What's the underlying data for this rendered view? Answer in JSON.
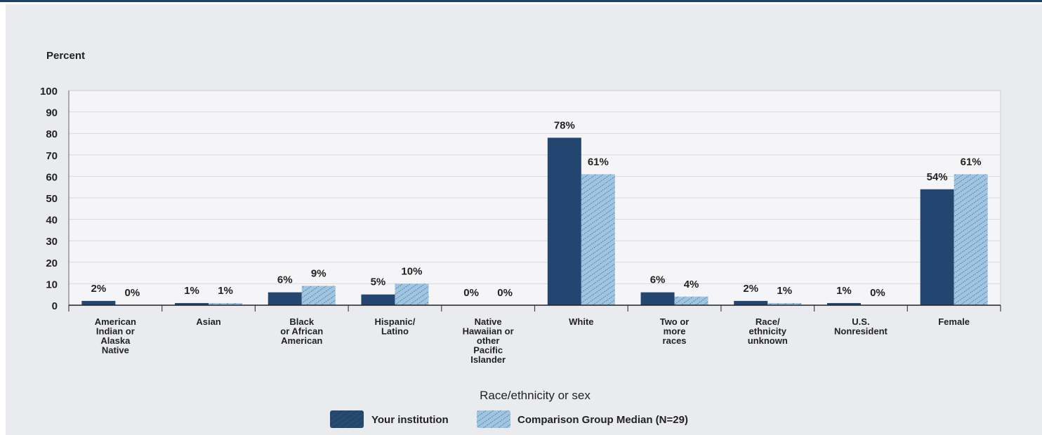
{
  "chart_data": {
    "type": "bar",
    "ylabel": "Percent",
    "xlabel": "Race/ethnicity or sex",
    "ylim": [
      0,
      100
    ],
    "yticks": [
      0,
      10,
      20,
      30,
      40,
      50,
      60,
      70,
      80,
      90,
      100
    ],
    "grid": true,
    "legend_position": "bottom-center",
    "categories": [
      [
        "American",
        "Indian or",
        "Alaska",
        "Native"
      ],
      [
        "Asian"
      ],
      [
        "Black",
        "or African",
        "American"
      ],
      [
        "Hispanic/",
        "Latino"
      ],
      [
        "Native",
        "Hawaiian or",
        "other",
        "Pacific",
        "Islander"
      ],
      [
        "White"
      ],
      [
        "Two or",
        "more",
        "races"
      ],
      [
        "Race/",
        "ethnicity",
        "unknown"
      ],
      [
        "U.S.",
        "Nonresident"
      ],
      [
        "Female"
      ]
    ],
    "series": [
      {
        "name": "Your institution",
        "color": "#224670",
        "values": [
          2,
          1,
          6,
          5,
          0,
          78,
          6,
          2,
          1,
          54
        ],
        "labels": [
          "2%",
          "1%",
          "6%",
          "5%",
          "0%",
          "78%",
          "6%",
          "2%",
          "1%",
          "54%"
        ]
      },
      {
        "name": "Comparison Group Median (N=29)",
        "color": "#9fc4e6",
        "pattern_color": "#3b6e4f",
        "values": [
          0,
          1,
          9,
          10,
          0,
          61,
          4,
          1,
          0,
          61
        ],
        "labels": [
          "0%",
          "1%",
          "9%",
          "10%",
          "0%",
          "61%",
          "4%",
          "1%",
          "0%",
          "61%"
        ]
      }
    ]
  }
}
